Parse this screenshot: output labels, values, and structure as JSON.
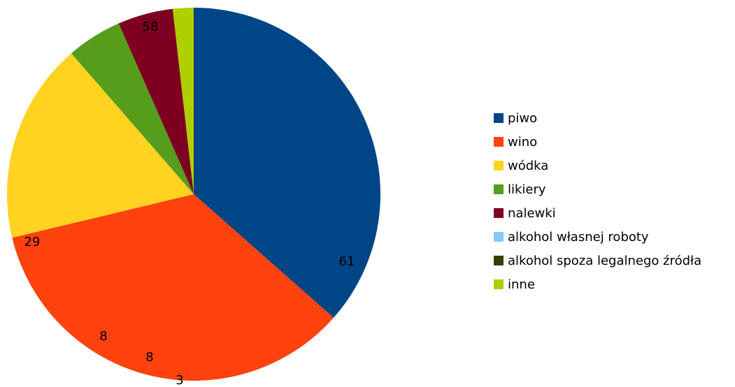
{
  "chart_data": {
    "type": "pie",
    "legend_position": "right",
    "start_angle_deg": 90,
    "direction": "clockwise",
    "slices": [
      {
        "name": "piwo",
        "value": 61,
        "label": "61",
        "color": "#004586"
      },
      {
        "name": "wino",
        "value": 58,
        "label": "58",
        "color": "#ff420e"
      },
      {
        "name": "wódka",
        "value": 29,
        "label": "29",
        "color": "#ffd320"
      },
      {
        "name": "likiery",
        "value": 8,
        "label": "8",
        "color": "#579d1c"
      },
      {
        "name": "nalewki",
        "value": 8,
        "label": "8",
        "color": "#7e0021"
      },
      {
        "name": "alkohol własnej roboty",
        "value": 0,
        "label": "",
        "color": "#83caff"
      },
      {
        "name": "alkohol spoza legalnego źródła",
        "value": 0,
        "label": "",
        "color": "#314004"
      },
      {
        "name": "inne",
        "value": 3,
        "label": "3",
        "color": "#aecf00"
      }
    ]
  }
}
